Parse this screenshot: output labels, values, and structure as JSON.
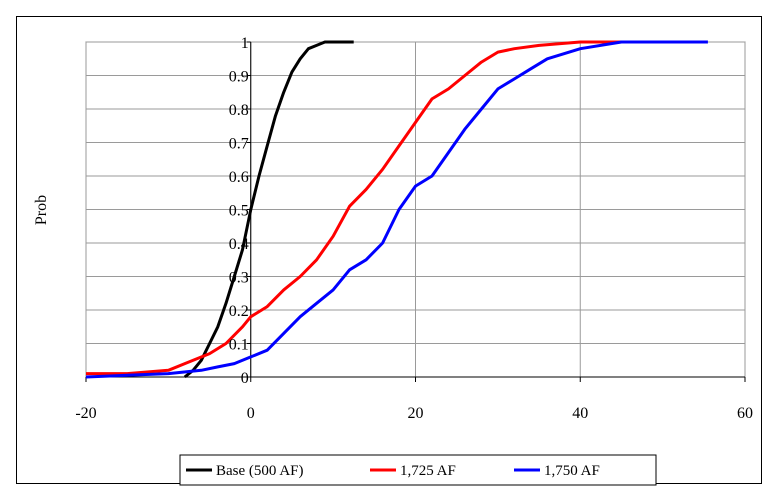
{
  "chart_data": {
    "type": "line",
    "title": "",
    "xlabel": "",
    "ylabel": "Prob",
    "xlim": [
      -20,
      60
    ],
    "ylim": [
      0,
      1
    ],
    "xticks": [
      -20,
      0,
      20,
      40,
      60
    ],
    "yticks": [
      0,
      0.1,
      0.2,
      0.3,
      0.4,
      0.5,
      0.6,
      0.7,
      0.8,
      0.9,
      1
    ],
    "grid": true,
    "legend_position": "bottom",
    "series": [
      {
        "name": "Base (500 AF)",
        "color": "#000000",
        "x": [
          -8,
          -7,
          -6,
          -5,
          -4,
          -3,
          -2,
          -1,
          0,
          1,
          2,
          3,
          4,
          5,
          6,
          7,
          8,
          9,
          10,
          12.5
        ],
        "y": [
          0,
          0.02,
          0.05,
          0.1,
          0.15,
          0.22,
          0.3,
          0.38,
          0.5,
          0.6,
          0.69,
          0.78,
          0.85,
          0.91,
          0.95,
          0.98,
          0.99,
          1,
          1,
          1
        ]
      },
      {
        "name": "1,725 AF",
        "color": "#ff0000",
        "x": [
          -20,
          -15,
          -10,
          -8,
          -5,
          -3,
          -1,
          0,
          2,
          4,
          6,
          8,
          10,
          12,
          14,
          16,
          18,
          20,
          22,
          24,
          26,
          28,
          30,
          32,
          35,
          40,
          47
        ],
        "y": [
          0.01,
          0.01,
          0.02,
          0.04,
          0.07,
          0.1,
          0.15,
          0.18,
          0.21,
          0.26,
          0.3,
          0.35,
          0.42,
          0.51,
          0.56,
          0.62,
          0.69,
          0.76,
          0.83,
          0.86,
          0.9,
          0.94,
          0.97,
          0.98,
          0.99,
          1,
          1
        ]
      },
      {
        "name": "1,750 AF",
        "color": "#0000ff",
        "x": [
          -20,
          -10,
          -6,
          -4,
          -2,
          0,
          2,
          4,
          6,
          8,
          10,
          12,
          14,
          16,
          18,
          20,
          22,
          24,
          26,
          28,
          30,
          32,
          34,
          36,
          40,
          45,
          50,
          55.5
        ],
        "y": [
          0,
          0.01,
          0.02,
          0.03,
          0.04,
          0.06,
          0.08,
          0.13,
          0.18,
          0.22,
          0.26,
          0.32,
          0.35,
          0.4,
          0.5,
          0.57,
          0.6,
          0.67,
          0.74,
          0.8,
          0.86,
          0.89,
          0.92,
          0.95,
          0.98,
          1,
          1,
          1
        ]
      }
    ]
  }
}
